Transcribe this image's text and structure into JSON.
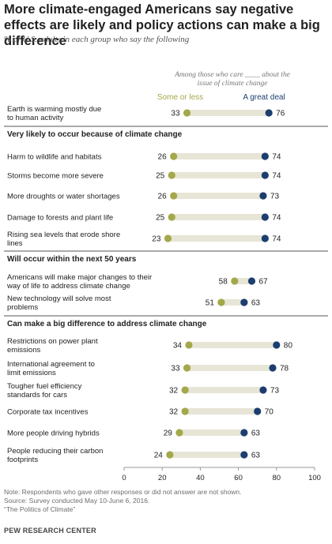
{
  "title": "More climate-engaged  Americans say negative effects are likely and policy actions can make a big difference",
  "subtitle": "% of U.S. adults in each group who say the following",
  "legend": {
    "header_line1": "Among those who care ____ about the",
    "header_line2": "issue of climate change",
    "low_label": "Some or less",
    "high_label": "A great deal"
  },
  "colors": {
    "low": "#a3a84a",
    "high": "#1b3e6f",
    "track": "#e7e5d6",
    "divider": "#555555"
  },
  "chart_data": {
    "type": "dot",
    "xlim": [
      0,
      100
    ],
    "xticks": [
      0,
      20,
      40,
      60,
      80,
      100
    ],
    "series": [
      {
        "name": "Some or less"
      },
      {
        "name": "A great deal"
      }
    ],
    "groups": [
      {
        "heading": "",
        "rows": [
          {
            "label": [
              "Earth is warming mostly due",
              "to human activity"
            ],
            "low": 33,
            "high": 76
          }
        ]
      },
      {
        "heading": "Very likely to occur because of climate change",
        "rows": [
          {
            "label": [
              "Harm to wildlife and habitats"
            ],
            "low": 26,
            "high": 74
          },
          {
            "label": [
              "Storms become more severe"
            ],
            "low": 25,
            "high": 74
          },
          {
            "label": [
              "More droughts or water shortages"
            ],
            "low": 26,
            "high": 73
          },
          {
            "label": [
              "Damage to forests and plant life"
            ],
            "low": 25,
            "high": 74
          },
          {
            "label": [
              "Rising sea levels that erode shore",
              "lines"
            ],
            "low": 23,
            "high": 74
          }
        ]
      },
      {
        "heading": "Will occur within the next 50 years",
        "rows": [
          {
            "label": [
              "Americans will make major changes to their",
              "way of life to address climate change"
            ],
            "low": 58,
            "high": 67
          },
          {
            "label": [
              "New technology will solve most",
              "problems"
            ],
            "low": 51,
            "high": 63
          }
        ]
      },
      {
        "heading": "Can make a big difference to address climate change",
        "rows": [
          {
            "label": [
              "Restrictions on power plant",
              "emissions"
            ],
            "low": 34,
            "high": 80
          },
          {
            "label": [
              "International agreement to",
              "limit emissions"
            ],
            "low": 33,
            "high": 78
          },
          {
            "label": [
              "Tougher fuel efficiency",
              "standards for cars"
            ],
            "low": 32,
            "high": 73
          },
          {
            "label": [
              "Corporate tax incentives"
            ],
            "low": 32,
            "high": 70
          },
          {
            "label": [
              "More people driving hybrids"
            ],
            "low": 29,
            "high": 63
          },
          {
            "label": [
              "People reducing their carbon",
              "footprints"
            ],
            "low": 24,
            "high": 63
          }
        ]
      }
    ]
  },
  "notes": {
    "note": "Note: Respondents who gave other responses or did not answer are not shown.",
    "source": "Source: Survey conducted May 10-June 6, 2016.",
    "report": "“The Politics of Climate”"
  },
  "brand": "PEW RESEARCH CENTER"
}
